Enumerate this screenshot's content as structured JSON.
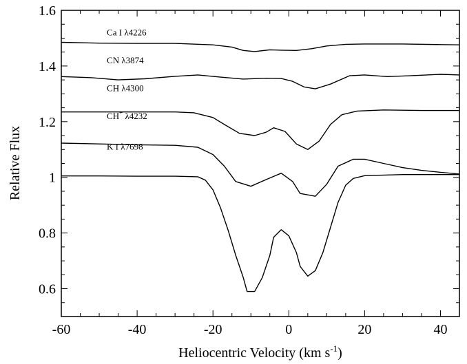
{
  "chart_data": {
    "type": "line",
    "xlabel": "Heliocentric Velocity (km s",
    "xlabel_exponent": "-1",
    "xlabel_close": ")",
    "ylabel": "Relative Flux",
    "xlim": [
      -60,
      45
    ],
    "ylim": [
      0.5,
      1.6
    ],
    "x_ticks": [
      -60,
      -40,
      -20,
      0,
      20,
      40
    ],
    "x_tick_labels": [
      "-60",
      "-40",
      "-20",
      "0",
      "20",
      "40"
    ],
    "y_ticks": [
      0.6,
      0.8,
      1.0,
      1.2,
      1.4,
      1.6
    ],
    "y_tick_labels": [
      "0.6",
      "0.8",
      "1",
      "1.2",
      "1.4",
      "1.6"
    ],
    "grid": false,
    "legend": "none",
    "series": [
      {
        "name": "Ca I λ4226",
        "label_at": [
          -48,
          1.51
        ],
        "points": [
          [
            -60,
            1.485
          ],
          [
            -50,
            1.482
          ],
          [
            -40,
            1.481
          ],
          [
            -30,
            1.481
          ],
          [
            -20,
            1.476
          ],
          [
            -15,
            1.468
          ],
          [
            -12,
            1.456
          ],
          [
            -9,
            1.452
          ],
          [
            -5,
            1.458
          ],
          [
            -2,
            1.457
          ],
          [
            2,
            1.456
          ],
          [
            6,
            1.462
          ],
          [
            10,
            1.472
          ],
          [
            15,
            1.478
          ],
          [
            20,
            1.479
          ],
          [
            30,
            1.479
          ],
          [
            40,
            1.477
          ],
          [
            45,
            1.476
          ]
        ]
      },
      {
        "name": "CN λ3874",
        "label_at": [
          -48,
          1.41
        ],
        "points": [
          [
            -60,
            1.362
          ],
          [
            -52,
            1.358
          ],
          [
            -45,
            1.35
          ],
          [
            -38,
            1.354
          ],
          [
            -30,
            1.363
          ],
          [
            -24,
            1.368
          ],
          [
            -18,
            1.36
          ],
          [
            -12,
            1.353
          ],
          [
            -6,
            1.356
          ],
          [
            -2,
            1.355
          ],
          [
            1,
            1.345
          ],
          [
            4,
            1.325
          ],
          [
            7,
            1.318
          ],
          [
            11,
            1.335
          ],
          [
            16,
            1.365
          ],
          [
            20,
            1.368
          ],
          [
            26,
            1.362
          ],
          [
            32,
            1.365
          ],
          [
            40,
            1.37
          ],
          [
            45,
            1.368
          ]
        ]
      },
      {
        "name": "CH λ4300",
        "label_at": [
          -48,
          1.31
        ],
        "points": [
          [
            -60,
            1.235
          ],
          [
            -50,
            1.235
          ],
          [
            -40,
            1.235
          ],
          [
            -30,
            1.235
          ],
          [
            -25,
            1.232
          ],
          [
            -20,
            1.215
          ],
          [
            -17,
            1.19
          ],
          [
            -13,
            1.158
          ],
          [
            -9,
            1.15
          ],
          [
            -6,
            1.162
          ],
          [
            -4,
            1.178
          ],
          [
            -1,
            1.165
          ],
          [
            2,
            1.12
          ],
          [
            5,
            1.1
          ],
          [
            8,
            1.13
          ],
          [
            11,
            1.19
          ],
          [
            14,
            1.225
          ],
          [
            18,
            1.238
          ],
          [
            25,
            1.242
          ],
          [
            35,
            1.24
          ],
          [
            45,
            1.24
          ]
        ]
      },
      {
        "name": "CH",
        "name_sup": "+",
        "name_suffix": " λ4232",
        "label_at": [
          -48,
          1.21
        ],
        "points": [
          [
            -60,
            1.123
          ],
          [
            -50,
            1.12
          ],
          [
            -40,
            1.117
          ],
          [
            -30,
            1.115
          ],
          [
            -24,
            1.108
          ],
          [
            -20,
            1.082
          ],
          [
            -17,
            1.04
          ],
          [
            -14,
            0.985
          ],
          [
            -10,
            0.968
          ],
          [
            -6,
            0.992
          ],
          [
            -2,
            1.015
          ],
          [
            1,
            0.985
          ],
          [
            3,
            0.942
          ],
          [
            7,
            0.932
          ],
          [
            10,
            0.975
          ],
          [
            13,
            1.04
          ],
          [
            17,
            1.065
          ],
          [
            20,
            1.065
          ],
          [
            25,
            1.05
          ],
          [
            30,
            1.035
          ],
          [
            35,
            1.025
          ],
          [
            40,
            1.018
          ],
          [
            45,
            1.012
          ]
        ]
      },
      {
        "name": "K I λ7698",
        "label_at": [
          -48,
          1.1
        ],
        "points": [
          [
            -60,
            1.005
          ],
          [
            -50,
            1.005
          ],
          [
            -40,
            1.004
          ],
          [
            -30,
            1.004
          ],
          [
            -24,
            1.002
          ],
          [
            -22,
            0.99
          ],
          [
            -20,
            0.955
          ],
          [
            -18,
            0.89
          ],
          [
            -16,
            0.81
          ],
          [
            -14,
            0.72
          ],
          [
            -12,
            0.64
          ],
          [
            -11,
            0.59
          ],
          [
            -9,
            0.59
          ],
          [
            -7,
            0.64
          ],
          [
            -5,
            0.72
          ],
          [
            -4,
            0.785
          ],
          [
            -2,
            0.812
          ],
          [
            0,
            0.79
          ],
          [
            2,
            0.73
          ],
          [
            3,
            0.68
          ],
          [
            5,
            0.645
          ],
          [
            7,
            0.665
          ],
          [
            9,
            0.73
          ],
          [
            11,
            0.82
          ],
          [
            13,
            0.91
          ],
          [
            15,
            0.972
          ],
          [
            17,
            0.996
          ],
          [
            20,
            1.006
          ],
          [
            30,
            1.01
          ],
          [
            40,
            1.01
          ],
          [
            45,
            1.01
          ]
        ]
      }
    ]
  }
}
